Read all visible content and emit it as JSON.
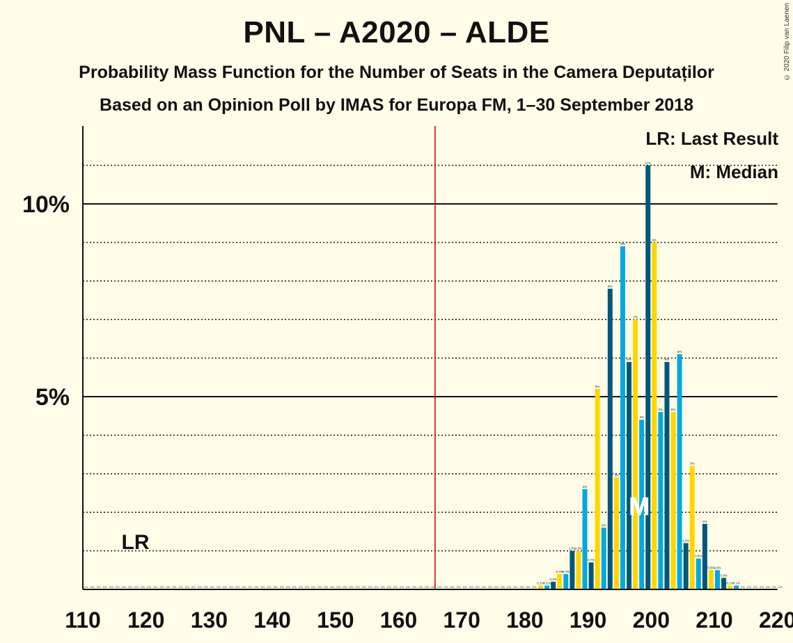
{
  "title": "PNL – A2020 – ALDE",
  "subtitle": "Probability Mass Function for the Number of Seats in the Camera Deputaților",
  "source": "Based on an Opinion Poll by IMAS for Europa FM, 1–30 September 2018",
  "credit": "© 2020 Filip van Laenen",
  "legend": {
    "last_result": "LR: Last Result",
    "median": "M: Median"
  },
  "chart_data": {
    "type": "bar",
    "xlabel": "",
    "ylabel": "",
    "xlim": [
      110,
      220
    ],
    "ylim": [
      0,
      12
    ],
    "x_ticks": [
      110,
      120,
      130,
      140,
      150,
      160,
      170,
      180,
      190,
      200,
      210,
      220
    ],
    "y_ticks": [
      {
        "value": 5,
        "label": "5%"
      },
      {
        "value": 10,
        "label": "10%"
      }
    ],
    "majority_line": 166,
    "last_result": {
      "seat": 118,
      "label": "LR"
    },
    "median": {
      "seat": 199,
      "label": "M"
    },
    "colors": [
      "#00a9e0",
      "#00577c",
      "#ffd600"
    ],
    "zero_label": "0%",
    "bars": [
      {
        "x": 182,
        "v": 0.1,
        "l": "0.1%"
      },
      {
        "x": 183,
        "v": 0.1,
        "l": "0.1%"
      },
      {
        "x": 184,
        "v": 0.2,
        "l": "0.2%"
      },
      {
        "x": 185,
        "v": 0.4,
        "l": "0.4%"
      },
      {
        "x": 186,
        "v": 0.4,
        "l": "0.4%"
      },
      {
        "x": 187,
        "v": 1.0,
        "l": "1.0%"
      },
      {
        "x": 188,
        "v": 1.0,
        "l": "1.0%"
      },
      {
        "x": 189,
        "v": 2.6,
        "l": "3%"
      },
      {
        "x": 190,
        "v": 0.7,
        "l": "0.7%"
      },
      {
        "x": 191,
        "v": 5.2,
        "l": "5%"
      },
      {
        "x": 192,
        "v": 1.6,
        "l": "2%"
      },
      {
        "x": 193,
        "v": 7.8,
        "l": "8%"
      },
      {
        "x": 194,
        "v": 2.9,
        "l": "3%"
      },
      {
        "x": 195,
        "v": 8.9,
        "l": "9%"
      },
      {
        "x": 196,
        "v": 5.9,
        "l": "6%"
      },
      {
        "x": 197,
        "v": 7.0,
        "l": "7%"
      },
      {
        "x": 198,
        "v": 4.4,
        "l": "4%"
      },
      {
        "x": 199,
        "v": 11.0,
        "l": "11%"
      },
      {
        "x": 200,
        "v": 9.0,
        "l": "9%"
      },
      {
        "x": 201,
        "v": 4.6,
        "l": "5%"
      },
      {
        "x": 202,
        "v": 5.9,
        "l": "6%"
      },
      {
        "x": 203,
        "v": 4.6,
        "l": "5%"
      },
      {
        "x": 204,
        "v": 6.1,
        "l": "6%"
      },
      {
        "x": 205,
        "v": 1.2,
        "l": "1.2%"
      },
      {
        "x": 206,
        "v": 3.2,
        "l": "3%"
      },
      {
        "x": 207,
        "v": 0.8,
        "l": "0.8%"
      },
      {
        "x": 208,
        "v": 1.7,
        "l": "2%"
      },
      {
        "x": 209,
        "v": 0.5,
        "l": "0.5%"
      },
      {
        "x": 210,
        "v": 0.5,
        "l": "0.5%"
      },
      {
        "x": 211,
        "v": 0.3,
        "l": "0.3%"
      },
      {
        "x": 212,
        "v": 0.1,
        "l": "0.1%"
      },
      {
        "x": 213,
        "v": 0.1,
        "l": "0.1%"
      }
    ]
  }
}
